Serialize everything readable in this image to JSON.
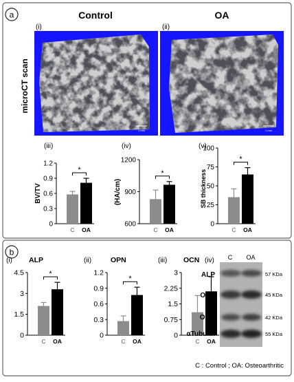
{
  "panel_a": {
    "label": "a",
    "control_label": "Control",
    "oa_label": "OA",
    "scan_sub_i": "(i)",
    "scan_sub_ii": "(ii)",
    "microct_label": "microCT scan",
    "scale_i": "1 mm",
    "scale_ii": "1 mm",
    "colors": {
      "scan_background": "#1515ff",
      "bone": "#c9c9c9"
    }
  },
  "panel_b": {
    "label": "b",
    "blot": {
      "sub": "(iv)",
      "lanes": [
        "C",
        "OA"
      ],
      "bands": [
        {
          "protein": "ALP",
          "size": "57 KDa"
        },
        {
          "protein": "OPN",
          "size": "45 KDa"
        },
        {
          "protein": "OCN",
          "size": "42 KDa"
        },
        {
          "protein": "αTubulin",
          "size": "55 KDa"
        }
      ]
    },
    "footnote": "C : Control ; OA: Osteoarthritic"
  },
  "colors": {
    "control_bar": "#8c8c8c",
    "oa_bar": "#000000",
    "panel_border": "#666666"
  },
  "chart_data": [
    {
      "type": "bar",
      "sub": "(iii)",
      "title": "",
      "xlabel": "",
      "ylabel": "BV/TV",
      "categories": [
        "C",
        "OA"
      ],
      "values": [
        0.58,
        0.81
      ],
      "errors": [
        0.06,
        0.09
      ],
      "ylim": [
        0,
        1.2
      ],
      "yticks": [
        "0",
        "0.3",
        "0.6",
        "0.9",
        "1.2"
      ],
      "significance": "*"
    },
    {
      "type": "bar",
      "sub": "(iv)",
      "title": "",
      "xlabel": "",
      "ylabel": "(HA/cm)",
      "categories": [
        "C",
        "OA"
      ],
      "values": [
        830,
        965
      ],
      "errors": [
        85,
        30
      ],
      "ylim": [
        600,
        1200
      ],
      "yticks": [
        "600",
        "900",
        "1200"
      ],
      "significance": "*"
    },
    {
      "type": "bar",
      "sub": "(v)",
      "title": "",
      "xlabel": "",
      "ylabel": "SB thickness",
      "categories": [
        "C",
        "OA"
      ],
      "values": [
        35,
        65
      ],
      "errors": [
        11,
        9
      ],
      "ylim": [
        0,
        100
      ],
      "yticks": [
        "0",
        "25",
        "50",
        "75",
        "100"
      ],
      "significance": "*"
    },
    {
      "type": "bar",
      "sub": "(i)",
      "title": "ALP",
      "xlabel": "",
      "ylabel": "",
      "categories": [
        "C",
        "OA"
      ],
      "values": [
        2.1,
        3.3
      ],
      "errors": [
        0.25,
        0.5
      ],
      "ylim": [
        0,
        4.5
      ],
      "yticks": [
        "0",
        "1.5",
        "3",
        "4.5"
      ],
      "significance": "*"
    },
    {
      "type": "bar",
      "sub": "(ii)",
      "title": "OPN",
      "xlabel": "",
      "ylabel": "",
      "categories": [
        "C",
        "OA"
      ],
      "values": [
        0.27,
        0.77
      ],
      "errors": [
        0.1,
        0.15
      ],
      "ylim": [
        0,
        1.2
      ],
      "yticks": [
        "0",
        "0.3",
        "0.6",
        "0.9",
        "1.2"
      ],
      "significance": "*"
    },
    {
      "type": "bar",
      "sub": "(iii)",
      "title": "OCN",
      "xlabel": "",
      "ylabel": "",
      "categories": [
        "C",
        "OA"
      ],
      "values": [
        1.1,
        2.1
      ],
      "errors": [
        0.8,
        0.7
      ],
      "ylim": [
        0,
        3
      ],
      "yticks": [
        "0",
        "0.75",
        "1.5",
        "2.25",
        "3"
      ],
      "significance": ""
    }
  ]
}
